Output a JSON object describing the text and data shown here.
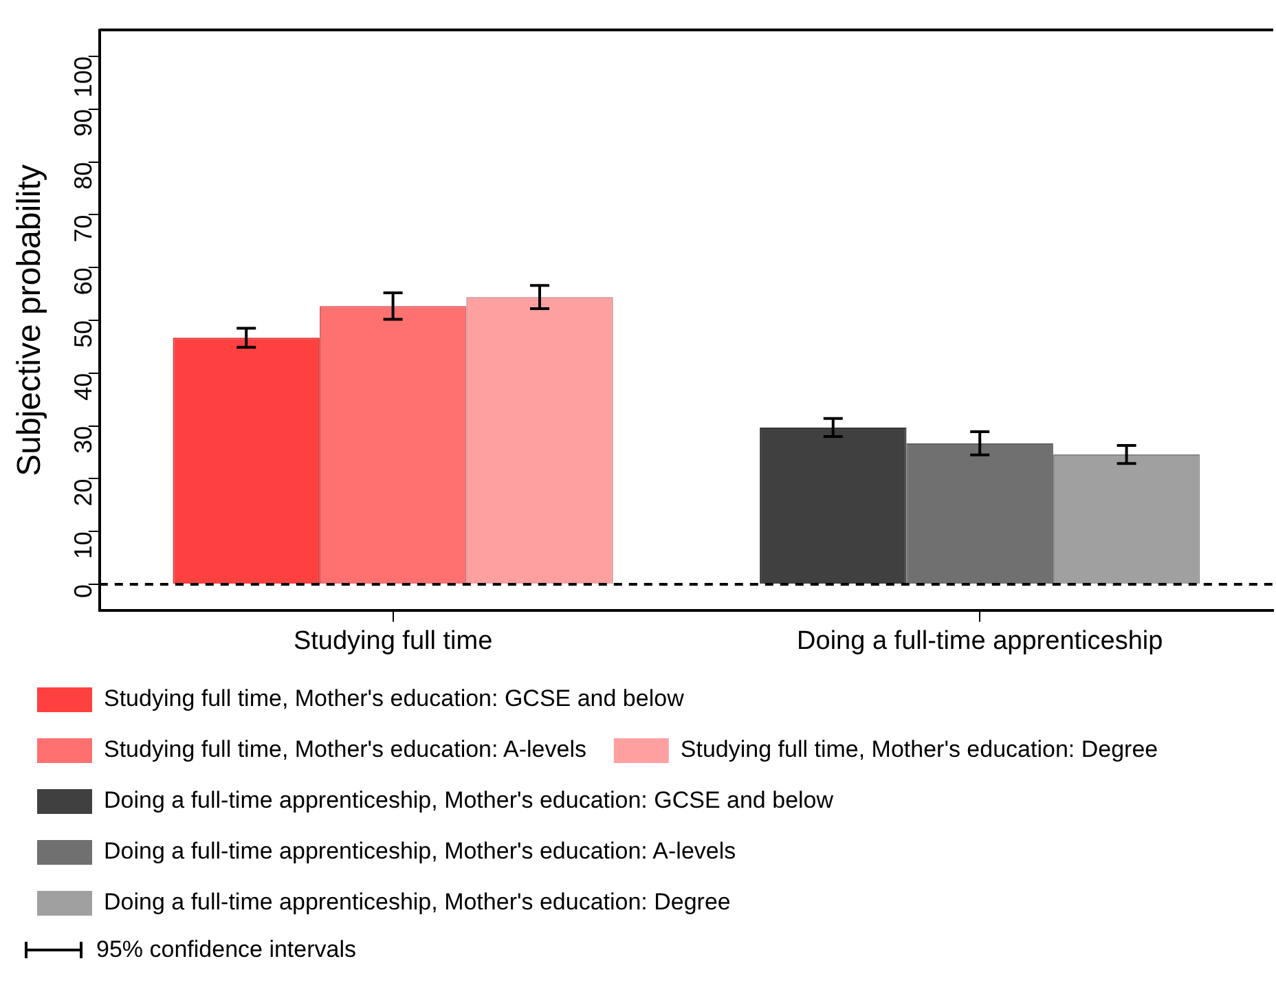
{
  "chart_data": {
    "type": "bar",
    "ylabel": "Subjective probability",
    "categories": [
      "Studying full time",
      "Doing a full-time apprenticeship"
    ],
    "series": [
      {
        "name": "Studying full time, Mother's education: GCSE and below",
        "color": "#ff4040",
        "values": [
          46.7,
          null
        ],
        "errors": [
          1.8,
          null
        ]
      },
      {
        "name": "Studying full time, Mother's education: A-levels",
        "color": "#ff7070",
        "values": [
          52.7,
          null
        ],
        "errors": [
          2.5,
          null
        ]
      },
      {
        "name": "Studying full time, Mother's education: Degree",
        "color": "#ffa0a0",
        "values": [
          54.4,
          null
        ],
        "errors": [
          2.2,
          null
        ]
      },
      {
        "name": "Doing a full-time apprenticeship, Mother's education: GCSE and below",
        "color": "#404040",
        "values": [
          null,
          29.7
        ],
        "errors": [
          null,
          1.7
        ]
      },
      {
        "name": "Doing a full-time apprenticeship, Mother's education: A-levels",
        "color": "#707070",
        "values": [
          null,
          26.7
        ],
        "errors": [
          null,
          2.2
        ]
      },
      {
        "name": "Doing a full-time apprenticeship, Mother's education: Degree",
        "color": "#a0a0a0",
        "values": [
          null,
          24.6
        ],
        "errors": [
          null,
          1.7
        ]
      }
    ],
    "ylim": [
      -5,
      105
    ],
    "yticks": [
      0,
      10,
      20,
      30,
      40,
      50,
      60,
      70,
      80,
      90,
      100
    ],
    "ref_lines": [
      {
        "axis": "y",
        "value": 0,
        "line_style": "dashed"
      }
    ],
    "legend": "bottom",
    "grid": false,
    "annotations": [
      "95% confidence intervals"
    ]
  }
}
